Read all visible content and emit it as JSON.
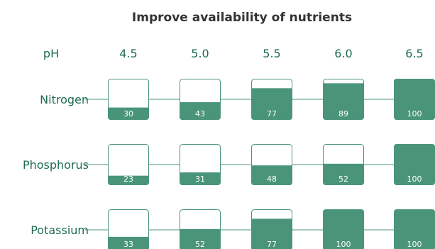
{
  "chart_data": {
    "type": "table",
    "title": "Improve availability of nutrients",
    "header_label": "pH",
    "categories": [
      "4.5",
      "5.0",
      "5.5",
      "6.0",
      "6.5"
    ],
    "series": [
      {
        "name": "Nitrogen",
        "values": [
          30,
          43,
          77,
          89,
          100
        ]
      },
      {
        "name": "Phosphorus",
        "values": [
          23,
          31,
          48,
          52,
          100
        ]
      },
      {
        "name": "Potassium",
        "values": [
          33,
          52,
          77,
          100,
          100
        ]
      }
    ],
    "value_range": [
      0,
      100
    ],
    "colors": {
      "fill": "#4a957a",
      "text": "#1e6b50",
      "title": "#333333",
      "line": "#4a957a"
    }
  }
}
